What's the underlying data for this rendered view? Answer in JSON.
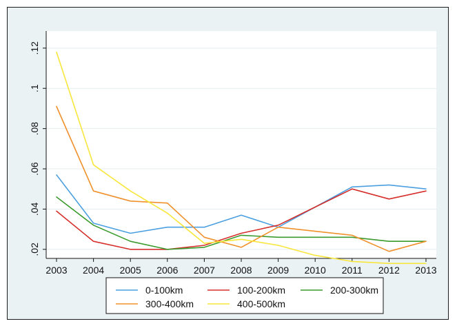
{
  "chart_data": {
    "type": "line",
    "title": "",
    "xlabel": "",
    "ylabel": "",
    "x": [
      2003,
      2004,
      2005,
      2006,
      2007,
      2008,
      2009,
      2010,
      2011,
      2012,
      2013
    ],
    "x_tick_labels": [
      "2003",
      "2004",
      "2005",
      "2006",
      "2007",
      "2008",
      "2009",
      "2010",
      "2011",
      "2012",
      "2013"
    ],
    "y_ticks": [
      0.02,
      0.04,
      0.06,
      0.08,
      0.1,
      0.12
    ],
    "y_tick_labels": [
      ".02",
      ".04",
      ".06",
      ".08",
      ".1",
      ".12"
    ],
    "xlim": [
      2003,
      2013
    ],
    "ylim": [
      0.0155,
      0.1285
    ],
    "grid": true,
    "legend_position": "bottom",
    "series": [
      {
        "name": "0-100km",
        "color": "#4a9fe0",
        "values": [
          0.057,
          0.033,
          0.028,
          0.031,
          0.031,
          0.037,
          0.031,
          0.041,
          0.051,
          0.052,
          0.05
        ]
      },
      {
        "name": "100-200km",
        "color": "#d62e2a",
        "values": [
          0.039,
          0.024,
          0.02,
          0.02,
          0.022,
          0.028,
          0.032,
          0.041,
          0.05,
          0.045,
          0.049
        ]
      },
      {
        "name": "200-300km",
        "color": "#3a9a2c",
        "values": [
          0.046,
          0.032,
          0.024,
          0.02,
          0.021,
          0.027,
          0.026,
          0.026,
          0.026,
          0.024,
          0.024
        ]
      },
      {
        "name": "300-400km",
        "color": "#f0902a",
        "values": [
          0.091,
          0.049,
          0.044,
          0.043,
          0.026,
          0.021,
          0.031,
          0.029,
          0.027,
          0.019,
          0.024
        ]
      },
      {
        "name": "400-500km",
        "color": "#f8e63a",
        "values": [
          0.118,
          0.062,
          0.049,
          0.038,
          0.023,
          0.025,
          0.022,
          0.017,
          0.014,
          0.013,
          0.013
        ]
      }
    ]
  }
}
